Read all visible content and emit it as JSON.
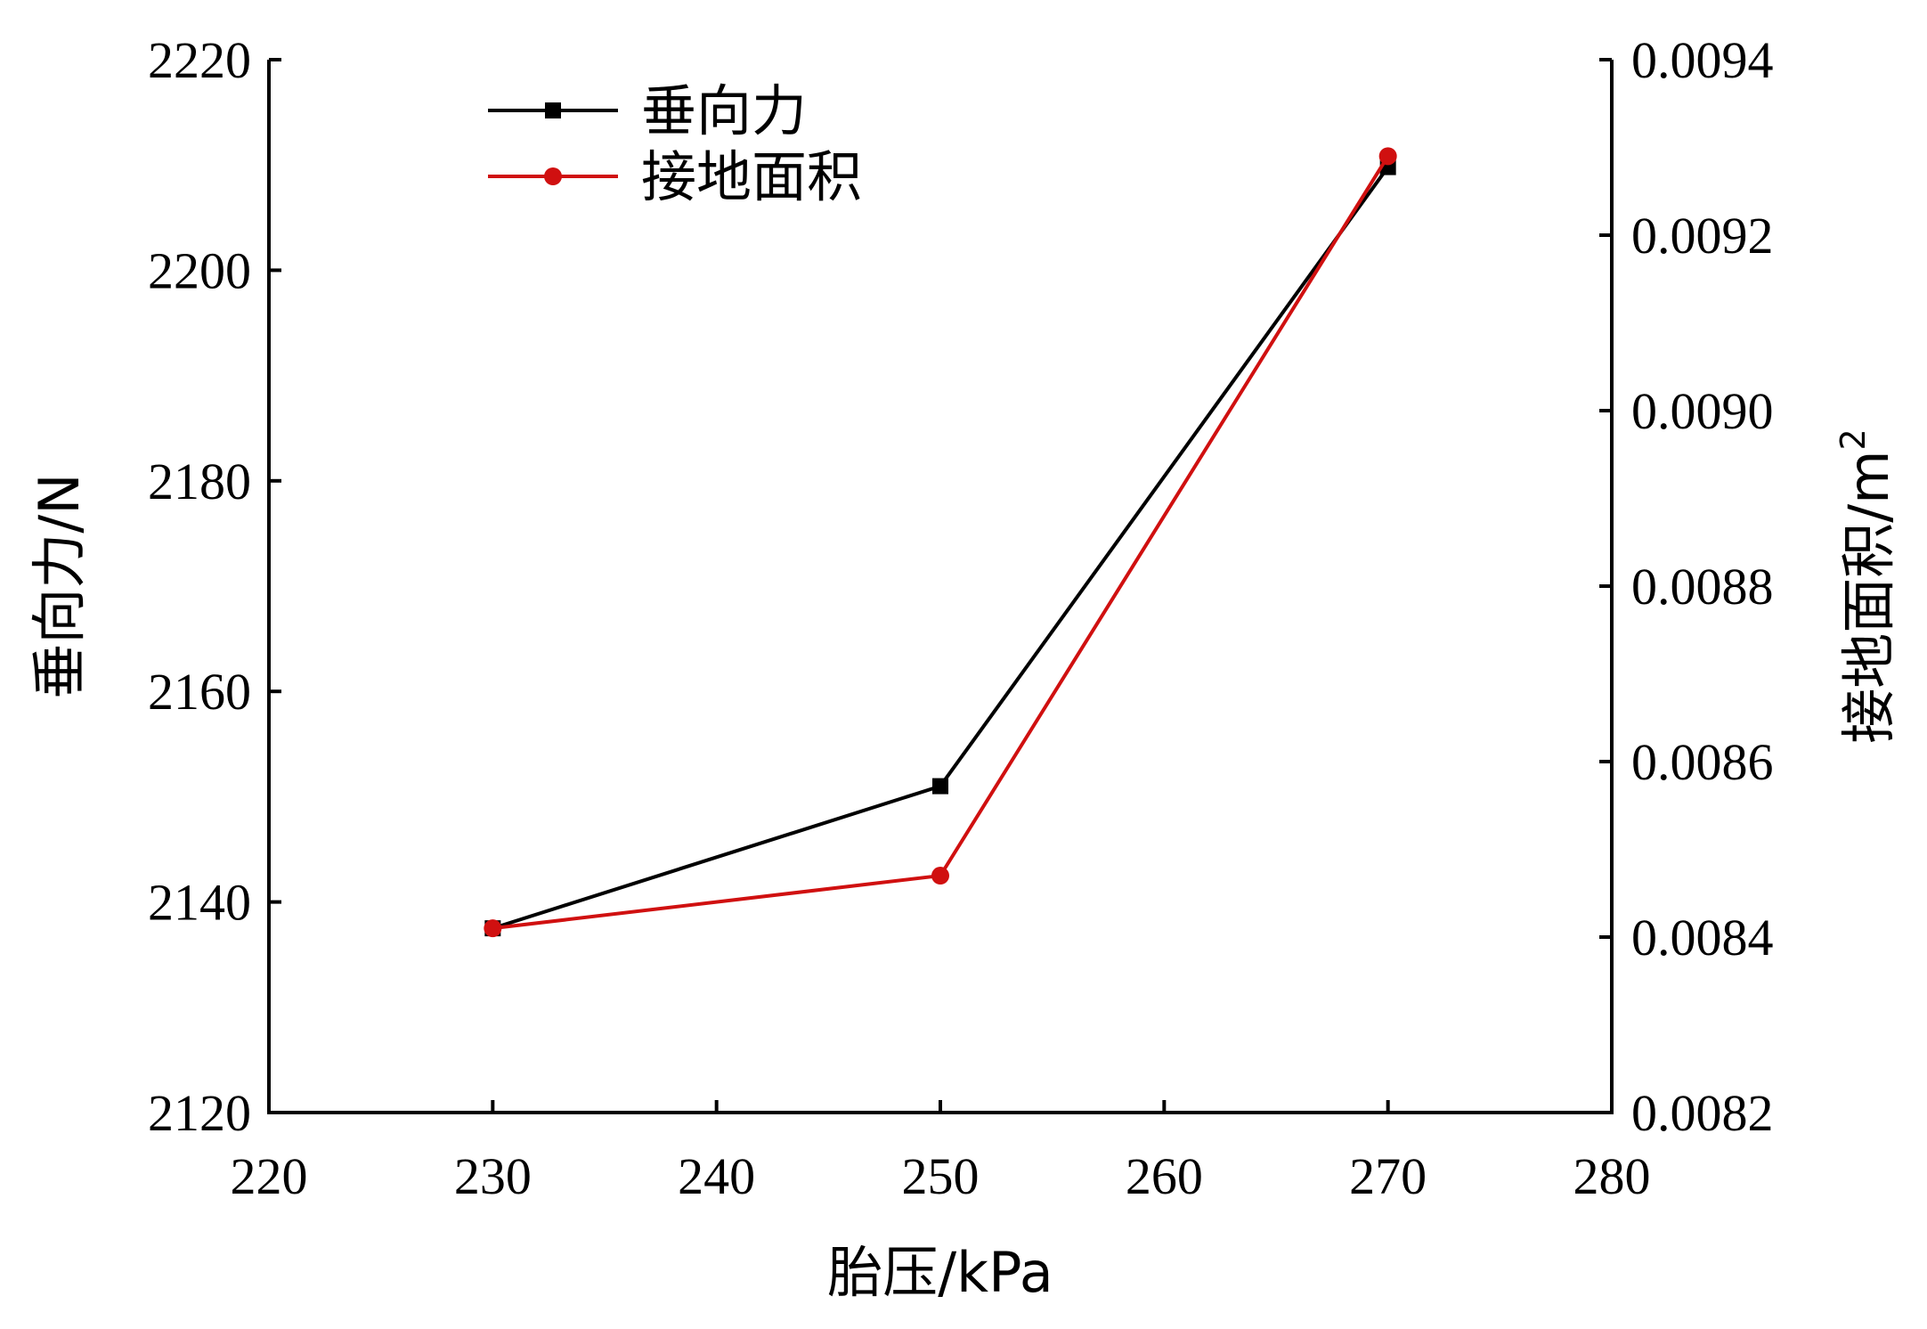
{
  "chart_data": {
    "type": "line",
    "x": [
      230,
      250,
      270
    ],
    "xlim": [
      220,
      280
    ],
    "x_ticks": [
      220,
      230,
      240,
      250,
      260,
      270,
      280
    ],
    "xlabel": "胎压/kPa",
    "y_left": {
      "label": "垂向力/N",
      "lim": [
        2120,
        2220
      ],
      "ticks": [
        2120,
        2140,
        2160,
        2180,
        2200,
        2220
      ]
    },
    "y_right": {
      "label": "接地面积/m",
      "label_sup": "2",
      "lim": [
        0.0082,
        0.0094
      ],
      "ticks": [
        "0.0082",
        "0.0084",
        "0.0086",
        "0.0088",
        "0.0090",
        "0.0092",
        "0.0094"
      ]
    },
    "series": [
      {
        "name": "垂向力",
        "axis": "left",
        "color": "#000000",
        "marker": "square",
        "values": [
          2137.5,
          2151,
          2209.8
        ]
      },
      {
        "name": "接地面积",
        "axis": "right",
        "color": "#d01010",
        "marker": "circle",
        "values": [
          0.00841,
          0.00847,
          0.00929
        ]
      }
    ],
    "legend_position": "top-left",
    "grid": false
  }
}
